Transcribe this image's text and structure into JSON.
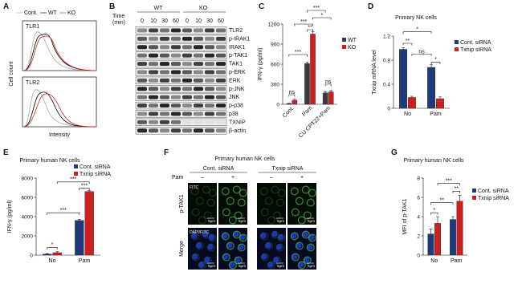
{
  "panels": {
    "a": {
      "label": "A",
      "legend": [
        "Cont.",
        "WT",
        "KO"
      ],
      "histograms": [
        "TLR1",
        "TLR2"
      ],
      "y_label": "Cell count",
      "x_label": "Intensity"
    },
    "b": {
      "label": "B",
      "groups": [
        "WT",
        "KO"
      ],
      "time_label": [
        "Time",
        "(min)"
      ],
      "times": [
        0,
        10,
        30,
        60,
        0,
        10,
        30,
        60
      ],
      "proteins": [
        "TLR2",
        "p-IRAK1",
        "IRAK1",
        "p-TAK1",
        "TAK1",
        "p-ERK",
        "ERK",
        "p-JNK",
        "JNK",
        "p-p38",
        "p38",
        "TXNIP",
        "β-actin"
      ]
    },
    "f": {
      "label": "F",
      "title": "Primary human NK cells",
      "groups": [
        "Cont. siRNA",
        "Txnip siRNA"
      ],
      "treatment": "Pam",
      "conditions": [
        "–",
        "+",
        "–",
        "+"
      ],
      "rows": [
        "p-TAK1",
        "Merge"
      ],
      "channels": [
        "FITC",
        "DAPI/FITC"
      ],
      "scale_bar": "5μm"
    }
  },
  "chart_data": [
    {
      "type": "bar",
      "panel": "C",
      "y_label": "IFN-γ (pg/ml)",
      "categories": [
        "Cont.",
        "Pam",
        "CU CPT22+Pam"
      ],
      "series": [
        {
          "name": "WT",
          "color": "#3a3a3a",
          "values": [
            10,
            610,
            170
          ],
          "errors": [
            5,
            20,
            20
          ]
        },
        {
          "name": "KO",
          "color": "#cc1f1f",
          "values": [
            60,
            1050,
            185
          ],
          "errors": [
            15,
            40,
            20
          ]
        }
      ],
      "ylim": [
        0,
        1200
      ],
      "yticks": [
        0,
        300,
        600,
        900,
        1200
      ],
      "legend": "right",
      "annotations": [
        "ns",
        "***",
        "***",
        "**",
        "***",
        "*",
        "ns"
      ]
    },
    {
      "type": "bar",
      "panel": "D",
      "title": "Primary NK cells",
      "y_label": "Txnip mRNA level",
      "categories": [
        "No",
        "Pam"
      ],
      "series": [
        {
          "name": "Cont. siRNA",
          "color": "#1f3a7a",
          "values": [
            0.98,
            0.68
          ],
          "errors": [
            0.03,
            0.05
          ]
        },
        {
          "name": "Txnip siRNA",
          "color": "#cc1f1f",
          "values": [
            0.18,
            0.16
          ],
          "errors": [
            0.02,
            0.03
          ]
        }
      ],
      "ylim": [
        0,
        1.2
      ],
      "yticks": [
        0,
        0.4,
        0.8,
        1.2
      ],
      "legend": "right",
      "annotations": [
        "**",
        "ns",
        "*",
        "*"
      ]
    },
    {
      "type": "bar",
      "panel": "E",
      "title": "Primary human NK cells",
      "y_label": "IFN-γ (pg/ml)",
      "categories": [
        "No",
        "Pam"
      ],
      "series": [
        {
          "name": "Cont. siRNA",
          "color": "#1f3a7a",
          "values": [
            100,
            3600
          ],
          "errors": [
            50,
            100
          ]
        },
        {
          "name": "Txnip siRNA",
          "color": "#cc1f1f",
          "values": [
            250,
            6600
          ],
          "errors": [
            100,
            100
          ]
        }
      ],
      "ylim": [
        0,
        8000
      ],
      "yticks": [
        0,
        2000,
        4000,
        6000,
        8000
      ],
      "legend": "upper right",
      "annotations": [
        "*",
        "***",
        "***",
        "***"
      ]
    },
    {
      "type": "bar",
      "panel": "G",
      "title": "Primary human NK cells",
      "y_label": "MFI of p-TAK1",
      "categories": [
        "No",
        "Pam"
      ],
      "series": [
        {
          "name": "Cont. siRNA",
          "color": "#1f3a7a",
          "values": [
            2.2,
            3.7
          ],
          "errors": [
            0.5,
            0.3
          ]
        },
        {
          "name": "Txnip siRNA",
          "color": "#cc1f1f",
          "values": [
            3.3,
            5.6
          ],
          "errors": [
            0.7,
            0.6
          ]
        }
      ],
      "ylim": [
        0,
        8
      ],
      "yticks": [
        0,
        2,
        4,
        6,
        8
      ],
      "legend": "right",
      "annotations": [
        "*",
        "**",
        "**",
        "***"
      ]
    }
  ]
}
